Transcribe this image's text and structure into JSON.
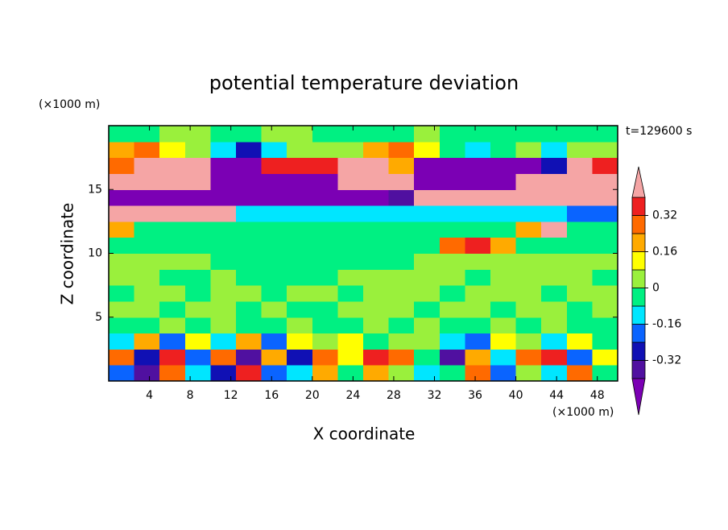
{
  "chart_data": {
    "type": "contour",
    "title": "potential temperature deviation",
    "x_label": "X coordinate",
    "y_label": "Z coordinate",
    "x_unit": "(×1000 m)",
    "y_unit": "(×1000 m)",
    "annotation": "t=129600 s",
    "xlim": [
      0,
      50
    ],
    "ylim": [
      0,
      20
    ],
    "xticks": [
      4,
      8,
      12,
      16,
      20,
      24,
      28,
      32,
      36,
      40,
      44,
      48
    ],
    "yticks": [
      5,
      10,
      15
    ],
    "x": [
      1.25,
      3.75,
      6.25,
      8.75,
      11.25,
      13.75,
      16.25,
      18.75,
      21.25,
      23.75,
      26.25,
      28.75,
      31.25,
      33.75,
      36.25,
      38.75,
      41.25,
      43.75,
      46.25,
      48.75
    ],
    "y": [
      0.625,
      1.875,
      3.125,
      4.375,
      5.625,
      6.875,
      8.125,
      9.375,
      10.625,
      11.875,
      13.125,
      14.375,
      15.625,
      16.875,
      18.125,
      19.375
    ],
    "z": [
      [
        -0.2,
        -0.36,
        0.28,
        -0.12,
        -0.28,
        0.36,
        -0.2,
        -0.12,
        0.2,
        -0.04,
        0.2,
        0.04,
        -0.12,
        -0.04,
        0.28,
        -0.2,
        0.04,
        -0.12,
        0.28,
        -0.04
      ],
      [
        0.28,
        -0.28,
        0.36,
        -0.2,
        0.28,
        -0.36,
        0.2,
        -0.28,
        0.28,
        0.12,
        0.36,
        0.28,
        -0.04,
        -0.36,
        0.2,
        -0.12,
        0.28,
        0.36,
        -0.2,
        0.12
      ],
      [
        -0.12,
        0.2,
        -0.2,
        0.12,
        -0.12,
        0.2,
        -0.2,
        0.12,
        0.04,
        0.12,
        -0.04,
        0.04,
        0.04,
        -0.12,
        -0.2,
        0.12,
        0.04,
        -0.12,
        0.12,
        -0.04
      ],
      [
        -0.04,
        -0.04,
        0.04,
        -0.04,
        0.04,
        -0.04,
        -0.04,
        0.04,
        -0.04,
        -0.04,
        0.04,
        -0.04,
        0.04,
        -0.04,
        -0.04,
        0.04,
        -0.04,
        0.04,
        -0.04,
        -0.04
      ],
      [
        0.04,
        0.04,
        -0.04,
        0.04,
        0.04,
        -0.04,
        0.04,
        -0.04,
        -0.04,
        0.04,
        0.04,
        0.04,
        -0.04,
        0.04,
        0.04,
        -0.04,
        0.04,
        0.04,
        -0.04,
        0.04
      ],
      [
        -0.04,
        0.04,
        0.04,
        -0.04,
        0.04,
        0.04,
        -0.04,
        0.04,
        0.04,
        -0.04,
        0.04,
        0.04,
        0.04,
        -0.04,
        0.04,
        0.04,
        0.04,
        -0.04,
        0.04,
        0.04
      ],
      [
        0.04,
        0.04,
        -0.04,
        -0.04,
        0.04,
        -0.04,
        -0.04,
        -0.04,
        -0.04,
        0.04,
        0.04,
        0.04,
        0.04,
        0.04,
        -0.04,
        0.04,
        0.04,
        0.04,
        0.04,
        -0.04
      ],
      [
        0.04,
        0.04,
        0.04,
        0.04,
        -0.04,
        -0.04,
        -0.04,
        -0.04,
        -0.04,
        -0.04,
        -0.04,
        -0.04,
        0.04,
        0.04,
        0.04,
        0.04,
        0.04,
        0.04,
        0.04,
        0.04
      ],
      [
        -0.04,
        -0.04,
        -0.04,
        -0.04,
        -0.04,
        -0.04,
        -0.04,
        -0.04,
        -0.04,
        -0.04,
        -0.04,
        -0.04,
        -0.04,
        0.28,
        0.36,
        0.2,
        -0.04,
        -0.04,
        -0.04,
        -0.04
      ],
      [
        0.2,
        -0.04,
        -0.04,
        -0.04,
        -0.04,
        -0.04,
        -0.04,
        -0.04,
        -0.04,
        -0.04,
        -0.04,
        -0.04,
        -0.04,
        -0.04,
        -0.04,
        -0.04,
        0.2,
        0.45,
        -0.04,
        -0.04
      ],
      [
        0.45,
        0.45,
        0.45,
        0.45,
        0.45,
        -0.12,
        -0.12,
        -0.12,
        -0.12,
        -0.12,
        -0.12,
        -0.12,
        -0.12,
        -0.12,
        -0.12,
        -0.12,
        -0.12,
        -0.12,
        -0.2,
        -0.2
      ],
      [
        -0.45,
        -0.45,
        -0.45,
        -0.45,
        -0.45,
        -0.45,
        -0.45,
        -0.45,
        -0.45,
        -0.45,
        -0.45,
        -0.36,
        0.45,
        0.45,
        0.45,
        0.45,
        0.45,
        0.45,
        0.45,
        0.45
      ],
      [
        0.45,
        0.45,
        0.45,
        0.45,
        -0.45,
        -0.45,
        -0.45,
        -0.45,
        -0.45,
        0.45,
        0.45,
        0.45,
        -0.45,
        -0.45,
        -0.45,
        -0.45,
        0.45,
        0.45,
        0.45,
        0.45
      ],
      [
        0.28,
        0.45,
        0.45,
        0.45,
        -0.45,
        -0.45,
        0.36,
        0.36,
        0.36,
        0.45,
        0.45,
        0.2,
        -0.45,
        -0.45,
        -0.45,
        -0.45,
        -0.45,
        -0.28,
        0.45,
        0.36
      ],
      [
        0.2,
        0.28,
        0.12,
        0.04,
        -0.12,
        -0.28,
        -0.12,
        0.04,
        0.04,
        0.04,
        0.2,
        0.28,
        0.12,
        -0.04,
        -0.12,
        -0.04,
        0.04,
        -0.12,
        0.04,
        0.04
      ],
      [
        -0.04,
        -0.04,
        0.04,
        0.04,
        -0.04,
        -0.04,
        0.04,
        0.04,
        -0.04,
        -0.04,
        -0.04,
        -0.04,
        0.04,
        -0.04,
        -0.04,
        -0.04,
        -0.04,
        -0.04,
        -0.04,
        -0.04
      ]
    ],
    "levels": [
      -0.4,
      -0.32,
      -0.24,
      -0.16,
      -0.08,
      0,
      0.08,
      0.16,
      0.24,
      0.32,
      0.4
    ],
    "colors": [
      "#7b00b4",
      "#5010a0",
      "#1010b4",
      "#0a64ff",
      "#00e6ff",
      "#00f082",
      "#9af03c",
      "#ffff00",
      "#ffaa00",
      "#ff6a00",
      "#ee2020",
      "#f5a5a5"
    ],
    "colorbar_ticks": [
      -0.32,
      -0.16,
      0,
      0.16,
      0.32
    ]
  }
}
